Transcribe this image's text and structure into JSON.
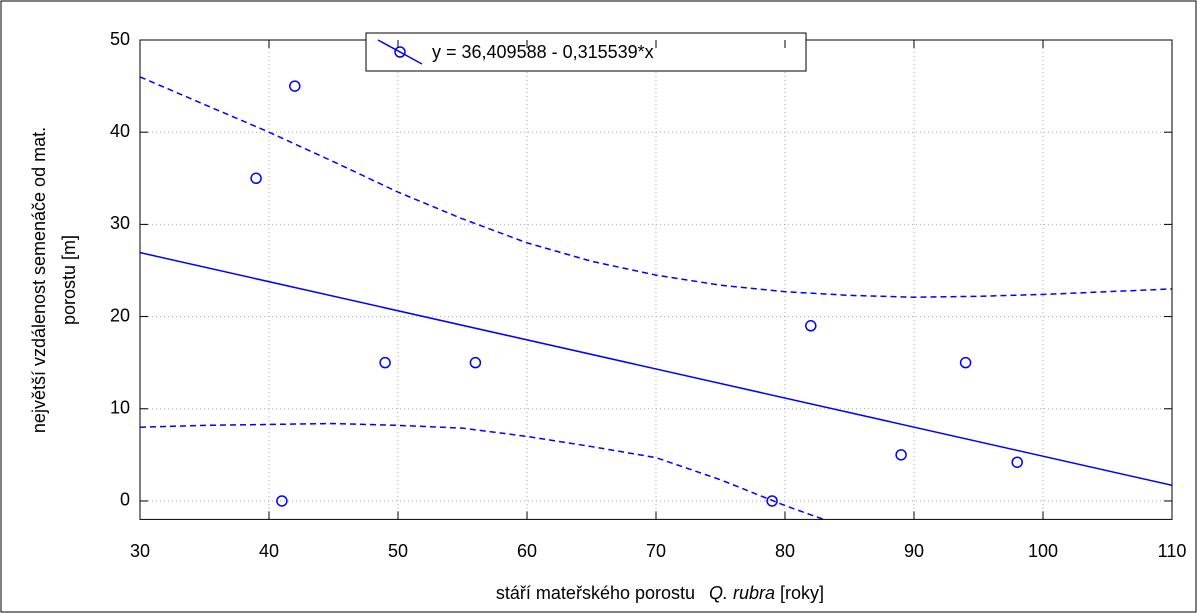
{
  "chart_data": {
    "type": "scatter",
    "x_label": [
      "stáří mateřského porostu",
      "Q. rubra",
      "[roky]"
    ],
    "y_label": [
      "největší vzdálenost semenáče od mat.",
      "porostu [m]"
    ],
    "xlim": [
      30,
      110
    ],
    "xticks": [
      30,
      40,
      50,
      60,
      70,
      80,
      90,
      100,
      110
    ],
    "ylim": [
      -2,
      50
    ],
    "yticks": [
      0,
      10,
      20,
      30,
      40,
      50
    ],
    "grid": true,
    "legend": "top-center",
    "series": [
      {
        "kind": "points",
        "color": "#0000ff",
        "x": [
          39,
          41,
          42,
          49,
          56,
          79,
          82,
          89,
          94,
          98
        ],
        "values": [
          35,
          0,
          45,
          15,
          15,
          0,
          19,
          5,
          15,
          4.2
        ]
      },
      {
        "kind": "fit",
        "name": "y = 36,409588 - 0,315539*x",
        "color": "#0000ff",
        "x": [
          30,
          110
        ],
        "values": [
          26.94,
          1.7
        ]
      },
      {
        "kind": "band",
        "color": "#0000ff",
        "x": [
          30,
          35,
          40,
          45,
          50,
          55,
          60,
          65,
          70,
          75,
          80,
          85,
          90,
          95,
          100,
          105,
          110
        ],
        "values": [
          46,
          43,
          40,
          36.8,
          33.5,
          30.6,
          28,
          26,
          24.5,
          23.4,
          22.7,
          22.3,
          22.1,
          22.2,
          22.4,
          22.7,
          23
        ]
      },
      {
        "kind": "band",
        "color": "#0000ff",
        "x": [
          30,
          35,
          40,
          45,
          50,
          55,
          60,
          65,
          70,
          75,
          80,
          83
        ],
        "values": [
          8,
          8.2,
          8.3,
          8.4,
          8.2,
          7.9,
          7,
          5.9,
          4.7,
          2.3,
          -0.5,
          -2
        ]
      }
    ]
  }
}
